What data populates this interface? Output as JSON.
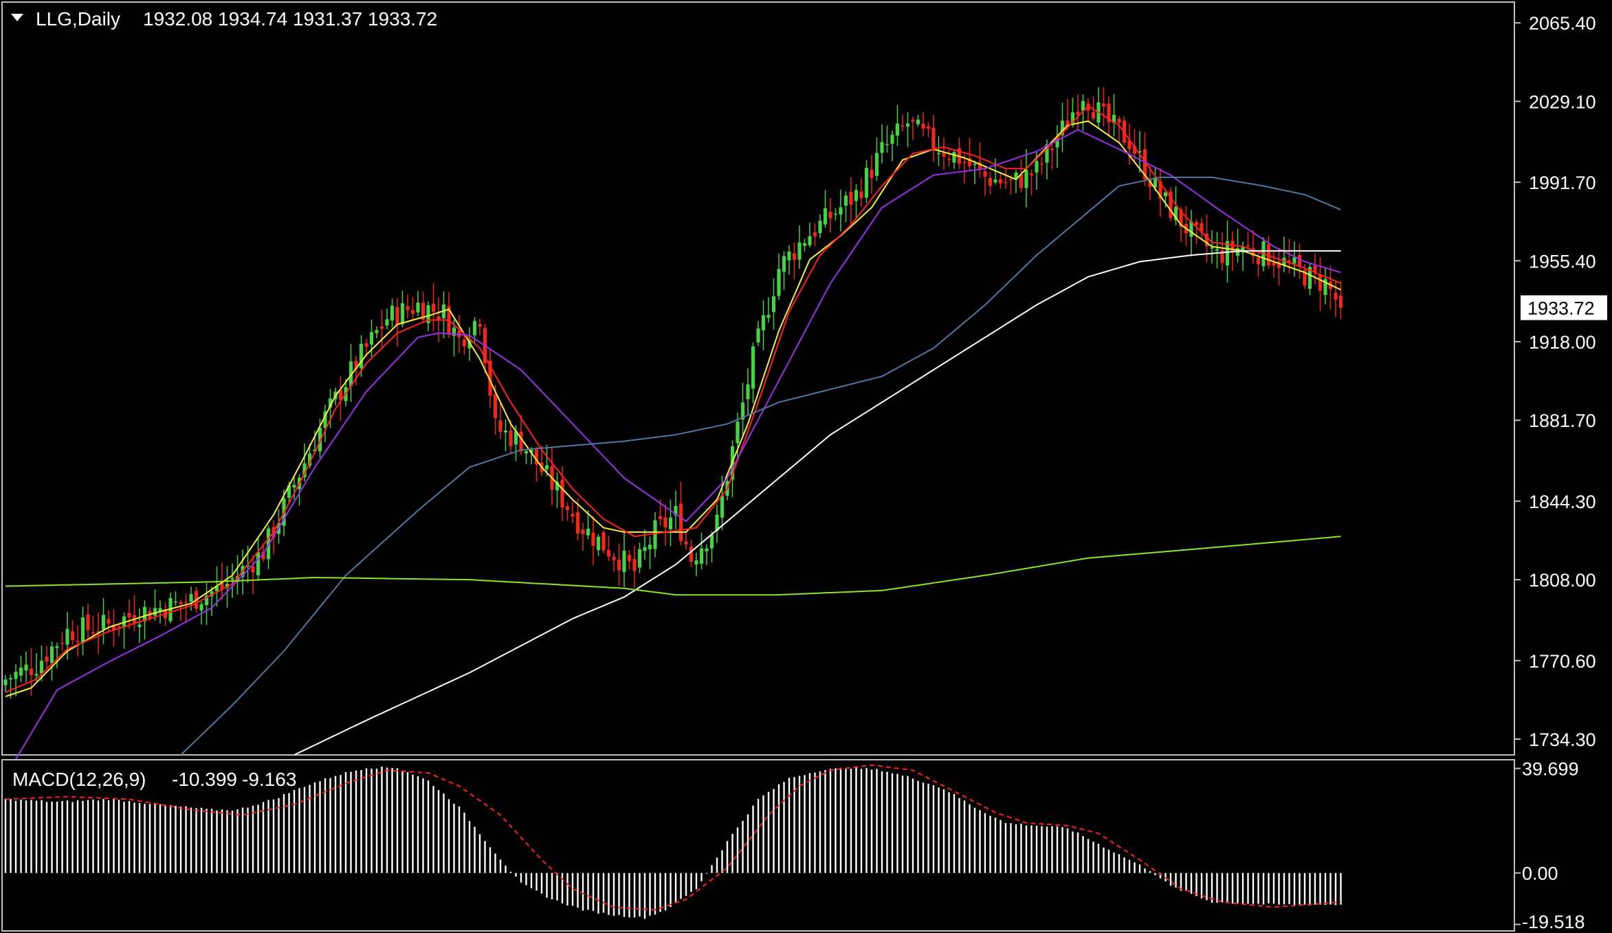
{
  "header": {
    "symbol_timeframe": "LLG,Daily",
    "ohlc": "1932.08 1934.74 1931.37 1933.72"
  },
  "macd_header": {
    "label": "MACD(12,26,9)",
    "main": "-10.399",
    "signal": "-9.163"
  },
  "colors": {
    "background": "#000000",
    "bull": "#45d245",
    "bear": "#f0281c",
    "frame": "#c0c0c0",
    "ma_yellow": "#f5f03c",
    "ma_red": "#ff2020",
    "ma_purple": "#9b30e8",
    "ma_blue": "#5078a0",
    "ma_white": "#ffffff",
    "ma_green": "#8ce62d",
    "macd_hist": "#ffffff",
    "macd_signal": "#ff2020"
  },
  "chart_data": {
    "type": "candlestick",
    "symbol": "LLG",
    "timeframe": "Daily",
    "current_price": 1933.72,
    "current_price_label": "1933.72",
    "price_axis": {
      "ylim": [
        1727,
        2075
      ],
      "ticks": [
        2065.4,
        2029.1,
        1991.7,
        1955.4,
        1918.0,
        1881.7,
        1844.3,
        1808.0,
        1770.6,
        1734.3
      ],
      "tick_labels": [
        "2065.40",
        "2029.10",
        "1991.70",
        "1955.40",
        "1918.00",
        "1881.70",
        "1844.30",
        "1808.00",
        "1770.60",
        "1734.30"
      ]
    },
    "macd_axis": {
      "ylim": [
        -22,
        43
      ],
      "ticks": [
        39.699,
        0.0,
        -19.518
      ],
      "tick_labels": [
        "39.699",
        "0.00",
        "-19.518"
      ]
    },
    "close_anchors": [
      [
        0,
        1762
      ],
      [
        6,
        1769
      ],
      [
        12,
        1784
      ],
      [
        20,
        1787
      ],
      [
        26,
        1793
      ],
      [
        34,
        1797
      ],
      [
        42,
        1804
      ],
      [
        50,
        1821
      ],
      [
        56,
        1852
      ],
      [
        62,
        1883
      ],
      [
        68,
        1908
      ],
      [
        74,
        1929
      ],
      [
        80,
        1935
      ],
      [
        85,
        1931
      ],
      [
        88,
        1919
      ],
      [
        92,
        1930
      ],
      [
        95,
        1878
      ],
      [
        100,
        1872
      ],
      [
        106,
        1852
      ],
      [
        112,
        1832
      ],
      [
        118,
        1820
      ],
      [
        122,
        1812
      ],
      [
        126,
        1830
      ],
      [
        130,
        1838
      ],
      [
        133,
        1818
      ],
      [
        138,
        1834
      ],
      [
        141,
        1868
      ],
      [
        145,
        1910
      ],
      [
        150,
        1952
      ],
      [
        155,
        1966
      ],
      [
        160,
        1976
      ],
      [
        165,
        1986
      ],
      [
        170,
        2006
      ],
      [
        175,
        2019
      ],
      [
        180,
        2009
      ],
      [
        185,
        2003
      ],
      [
        190,
        1994
      ],
      [
        195,
        1991
      ],
      [
        200,
        1997
      ],
      [
        205,
        2016
      ],
      [
        209,
        2033
      ],
      [
        213,
        2021
      ],
      [
        218,
        2011
      ],
      [
        224,
        1985
      ],
      [
        230,
        1968
      ],
      [
        235,
        1958
      ],
      [
        240,
        1962
      ],
      [
        246,
        1957
      ],
      [
        252,
        1949
      ],
      [
        256,
        1945
      ],
      [
        259,
        1934
      ]
    ],
    "moving_averages": [
      {
        "color": "#f5f03c",
        "points": [
          [
            0,
            1754
          ],
          [
            5,
            1758
          ],
          [
            12,
            1775
          ],
          [
            20,
            1786
          ],
          [
            28,
            1792
          ],
          [
            36,
            1797
          ],
          [
            44,
            1810
          ],
          [
            52,
            1838
          ],
          [
            58,
            1865
          ],
          [
            64,
            1893
          ],
          [
            70,
            1912
          ],
          [
            76,
            1926
          ],
          [
            82,
            1930
          ],
          [
            86,
            1933
          ],
          [
            92,
            1910
          ],
          [
            98,
            1880
          ],
          [
            104,
            1860
          ],
          [
            110,
            1845
          ],
          [
            116,
            1832
          ],
          [
            120,
            1830
          ],
          [
            126,
            1830
          ],
          [
            132,
            1830
          ],
          [
            138,
            1845
          ],
          [
            144,
            1880
          ],
          [
            150,
            1923
          ],
          [
            156,
            1956
          ],
          [
            162,
            1967
          ],
          [
            168,
            1980
          ],
          [
            174,
            2002
          ],
          [
            180,
            2007
          ],
          [
            186,
            2003
          ],
          [
            192,
            1997
          ],
          [
            196,
            1993
          ],
          [
            200,
            2003
          ],
          [
            206,
            2018
          ],
          [
            210,
            2020
          ],
          [
            216,
            2010
          ],
          [
            222,
            1992
          ],
          [
            228,
            1972
          ],
          [
            234,
            1962
          ],
          [
            240,
            1960
          ],
          [
            246,
            1955
          ],
          [
            252,
            1950
          ],
          [
            259,
            1942
          ]
        ]
      },
      {
        "color": "#ff2020",
        "points": [
          [
            0,
            1756
          ],
          [
            6,
            1762
          ],
          [
            12,
            1776
          ],
          [
            20,
            1784
          ],
          [
            28,
            1790
          ],
          [
            36,
            1796
          ],
          [
            44,
            1806
          ],
          [
            52,
            1830
          ],
          [
            58,
            1857
          ],
          [
            64,
            1887
          ],
          [
            70,
            1908
          ],
          [
            76,
            1922
          ],
          [
            82,
            1928
          ],
          [
            86,
            1928
          ],
          [
            92,
            1915
          ],
          [
            98,
            1890
          ],
          [
            104,
            1868
          ],
          [
            110,
            1850
          ],
          [
            116,
            1836
          ],
          [
            122,
            1828
          ],
          [
            128,
            1830
          ],
          [
            134,
            1832
          ],
          [
            140,
            1850
          ],
          [
            146,
            1890
          ],
          [
            152,
            1932
          ],
          [
            158,
            1958
          ],
          [
            164,
            1972
          ],
          [
            170,
            1990
          ],
          [
            176,
            2005
          ],
          [
            182,
            2008
          ],
          [
            188,
            2004
          ],
          [
            194,
            1998
          ],
          [
            198,
            1998
          ],
          [
            204,
            2012
          ],
          [
            210,
            2027
          ],
          [
            216,
            2018
          ],
          [
            222,
            1998
          ],
          [
            228,
            1978
          ],
          [
            234,
            1964
          ],
          [
            240,
            1962
          ],
          [
            246,
            1957
          ],
          [
            252,
            1952
          ],
          [
            259,
            1945
          ]
        ]
      },
      {
        "color": "#9b30e8",
        "points": [
          [
            2,
            1725
          ],
          [
            10,
            1757
          ],
          [
            20,
            1770
          ],
          [
            30,
            1782
          ],
          [
            40,
            1795
          ],
          [
            50,
            1820
          ],
          [
            60,
            1860
          ],
          [
            70,
            1895
          ],
          [
            80,
            1920
          ],
          [
            84,
            1922
          ],
          [
            90,
            1921
          ],
          [
            100,
            1905
          ],
          [
            110,
            1880
          ],
          [
            120,
            1855
          ],
          [
            126,
            1845
          ],
          [
            132,
            1835
          ],
          [
            140,
            1855
          ],
          [
            150,
            1900
          ],
          [
            160,
            1945
          ],
          [
            170,
            1980
          ],
          [
            180,
            1995
          ],
          [
            190,
            1998
          ],
          [
            200,
            2006
          ],
          [
            208,
            2016
          ],
          [
            216,
            2007
          ],
          [
            226,
            1995
          ],
          [
            236,
            1978
          ],
          [
            246,
            1962
          ],
          [
            252,
            1955
          ],
          [
            259,
            1950
          ]
        ]
      },
      {
        "color": "#5078a0",
        "points": [
          [
            34,
            1727
          ],
          [
            44,
            1750
          ],
          [
            54,
            1775
          ],
          [
            66,
            1810
          ],
          [
            80,
            1840
          ],
          [
            90,
            1860
          ],
          [
            100,
            1868
          ],
          [
            110,
            1870
          ],
          [
            120,
            1872
          ],
          [
            130,
            1875
          ],
          [
            140,
            1880
          ],
          [
            150,
            1890
          ],
          [
            160,
            1896
          ],
          [
            170,
            1902
          ],
          [
            180,
            1915
          ],
          [
            190,
            1935
          ],
          [
            200,
            1958
          ],
          [
            210,
            1978
          ],
          [
            216,
            1990
          ],
          [
            224,
            1994
          ],
          [
            234,
            1994
          ],
          [
            244,
            1990
          ],
          [
            252,
            1986
          ],
          [
            259,
            1979
          ]
        ]
      },
      {
        "color": "#ffffff",
        "points": [
          [
            56,
            1727
          ],
          [
            70,
            1743
          ],
          [
            90,
            1765
          ],
          [
            110,
            1790
          ],
          [
            120,
            1800
          ],
          [
            130,
            1815
          ],
          [
            140,
            1835
          ],
          [
            150,
            1855
          ],
          [
            160,
            1875
          ],
          [
            170,
            1890
          ],
          [
            180,
            1905
          ],
          [
            190,
            1920
          ],
          [
            200,
            1935
          ],
          [
            210,
            1948
          ],
          [
            220,
            1955
          ],
          [
            230,
            1958
          ],
          [
            240,
            1960
          ],
          [
            250,
            1960
          ],
          [
            259,
            1960
          ]
        ]
      },
      {
        "color": "#8ce62d",
        "points": [
          [
            0,
            1805
          ],
          [
            40,
            1807
          ],
          [
            60,
            1809
          ],
          [
            90,
            1808
          ],
          [
            120,
            1804
          ],
          [
            130,
            1801
          ],
          [
            150,
            1801
          ],
          [
            170,
            1803
          ],
          [
            190,
            1810
          ],
          [
            210,
            1818
          ],
          [
            230,
            1822
          ],
          [
            259,
            1828
          ]
        ]
      }
    ],
    "macd_histogram_anchors": [
      [
        0,
        28
      ],
      [
        10,
        27
      ],
      [
        20,
        28
      ],
      [
        30,
        26
      ],
      [
        40,
        24
      ],
      [
        45,
        24
      ],
      [
        52,
        28
      ],
      [
        58,
        33
      ],
      [
        64,
        37
      ],
      [
        70,
        40
      ],
      [
        76,
        40
      ],
      [
        82,
        35
      ],
      [
        88,
        25
      ],
      [
        94,
        10
      ],
      [
        100,
        -4
      ],
      [
        106,
        -10
      ],
      [
        112,
        -14
      ],
      [
        118,
        -16
      ],
      [
        124,
        -17
      ],
      [
        128,
        -14
      ],
      [
        134,
        -6
      ],
      [
        140,
        12
      ],
      [
        146,
        28
      ],
      [
        152,
        36
      ],
      [
        158,
        39
      ],
      [
        164,
        40
      ],
      [
        170,
        39
      ],
      [
        176,
        36
      ],
      [
        182,
        32
      ],
      [
        188,
        25
      ],
      [
        194,
        19
      ],
      [
        200,
        18
      ],
      [
        206,
        17
      ],
      [
        212,
        11
      ],
      [
        218,
        5
      ],
      [
        222,
        1
      ],
      [
        226,
        -5
      ],
      [
        234,
        -11
      ],
      [
        246,
        -12
      ],
      [
        259,
        -12
      ]
    ],
    "macd_signal_anchors": [
      [
        0,
        28
      ],
      [
        12,
        29
      ],
      [
        24,
        28
      ],
      [
        36,
        24
      ],
      [
        46,
        22
      ],
      [
        56,
        26
      ],
      [
        66,
        34
      ],
      [
        74,
        39
      ],
      [
        82,
        38
      ],
      [
        88,
        33
      ],
      [
        96,
        22
      ],
      [
        104,
        5
      ],
      [
        110,
        -6
      ],
      [
        118,
        -13
      ],
      [
        126,
        -14
      ],
      [
        132,
        -10
      ],
      [
        140,
        2
      ],
      [
        148,
        22
      ],
      [
        154,
        33
      ],
      [
        160,
        39
      ],
      [
        168,
        41
      ],
      [
        176,
        39
      ],
      [
        184,
        31
      ],
      [
        192,
        23
      ],
      [
        198,
        19
      ],
      [
        206,
        18
      ],
      [
        212,
        15
      ],
      [
        220,
        5
      ],
      [
        228,
        -6
      ],
      [
        236,
        -11
      ],
      [
        246,
        -13
      ],
      [
        259,
        -11
      ]
    ]
  }
}
